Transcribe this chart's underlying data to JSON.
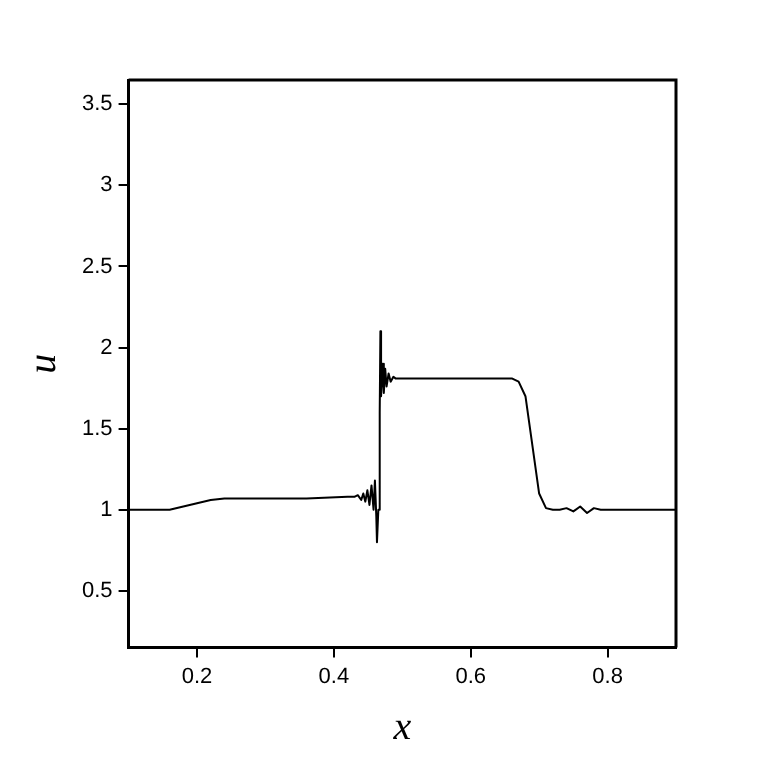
{
  "chart_data": {
    "type": "line",
    "xlabel": "x",
    "ylabel": "u",
    "x": [
      0.1,
      0.16,
      0.18,
      0.2,
      0.22,
      0.24,
      0.3,
      0.36,
      0.42,
      0.43,
      0.435,
      0.44,
      0.443,
      0.446,
      0.449,
      0.452,
      0.455,
      0.458,
      0.46,
      0.462,
      0.463,
      0.465,
      0.467,
      0.468,
      0.469,
      0.471,
      0.473,
      0.475,
      0.477,
      0.48,
      0.483,
      0.487,
      0.49,
      0.55,
      0.62,
      0.66,
      0.67,
      0.68,
      0.69,
      0.7,
      0.71,
      0.72,
      0.73,
      0.74,
      0.75,
      0.76,
      0.77,
      0.78,
      0.79,
      0.8,
      0.85,
      0.9
    ],
    "series": [
      {
        "color": "#000000",
        "values": [
          1,
          1,
          1.02,
          1.04,
          1.06,
          1.07,
          1.07,
          1.07,
          1.08,
          1.08,
          1.09,
          1.06,
          1.1,
          1.05,
          1.12,
          1.03,
          1.15,
          1.0,
          1.18,
          0.96,
          0.8,
          1.0,
          1.6,
          2.1,
          1.7,
          1.9,
          1.72,
          1.87,
          1.76,
          1.84,
          1.79,
          1.82,
          1.81,
          1.81,
          1.81,
          1.81,
          1.79,
          1.7,
          1.4,
          1.1,
          1.01,
          1,
          1,
          1.01,
          0.99,
          1.02,
          0.98,
          1.01,
          1,
          1,
          1,
          1
        ]
      }
    ],
    "xlim": [
      0.1,
      0.9
    ],
    "xticks": [
      0.2,
      0.4,
      0.6,
      0.8
    ],
    "ylim": [
      0.15,
      3.65
    ],
    "yticks": [
      0.5,
      1,
      1.5,
      2,
      2.5,
      3,
      3.5
    ],
    "grid": false,
    "legend": false,
    "marker": "none",
    "line_style": "solid"
  }
}
